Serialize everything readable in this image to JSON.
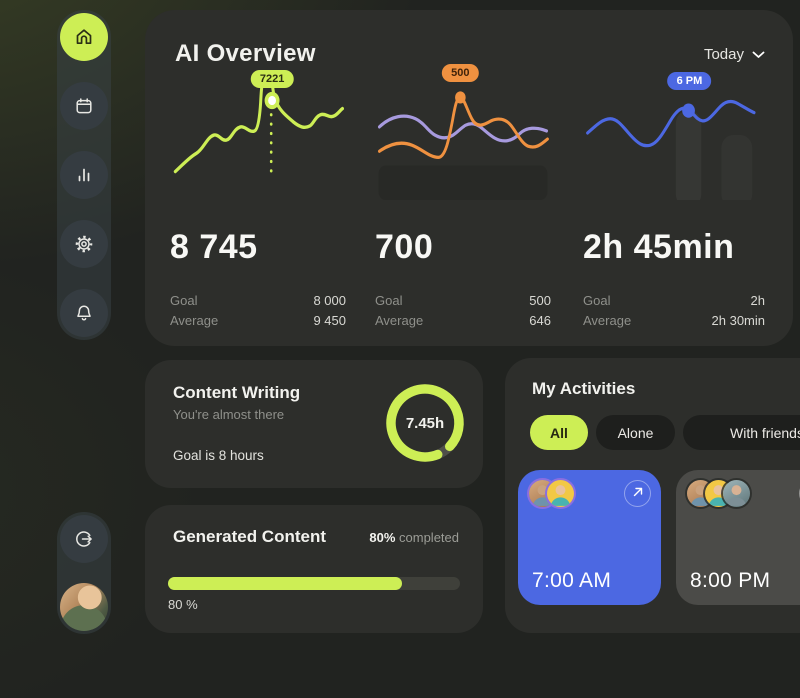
{
  "colors": {
    "accent_lime": "#cdee55",
    "accent_orange": "#ef9140",
    "accent_purple": "#a79ade",
    "accent_blue": "#4c68e2",
    "card_bg": "#2d2e2b",
    "page_bg": "#212320"
  },
  "sidebar": {
    "items": [
      {
        "name": "home",
        "active": true
      },
      {
        "name": "calendar",
        "active": false
      },
      {
        "name": "statistics",
        "active": false
      },
      {
        "name": "settings",
        "active": false
      },
      {
        "name": "notifications",
        "active": false
      }
    ],
    "logout": "logout",
    "avatar": "user profile photo"
  },
  "header": {
    "title": "AI Overview",
    "range_label": "Today"
  },
  "stats_labels": {
    "goal": "Goal",
    "average": "Average"
  },
  "stats": [
    {
      "value": "8 745",
      "goal": "8 000",
      "average": "9 450",
      "badge": "7221"
    },
    {
      "value": "700",
      "goal": "500",
      "average": "646",
      "badge": "500"
    },
    {
      "value": "2h 45min",
      "goal": "2h",
      "average": "2h 30min",
      "badge": "6 PM"
    }
  ],
  "content_writing": {
    "title": "Content Writing",
    "subtitle": "You're almost there",
    "goal_text": "Goal is 8 hours",
    "progress_label": "7.45h",
    "progress_pct": 93
  },
  "generated_content": {
    "title": "Generated Content",
    "completed_bold": "80%",
    "completed_rest": " completed",
    "bar_pct": 80,
    "bar_label": "80 %"
  },
  "activities": {
    "title": "My Activities",
    "tabs": [
      {
        "label": "All",
        "active": true
      },
      {
        "label": "Alone",
        "active": false
      },
      {
        "label": "With friends",
        "active": false
      }
    ],
    "cards": [
      {
        "time": "7:00 AM",
        "style": "blue",
        "participants": 2
      },
      {
        "time": "8:00 PM",
        "style": "gray",
        "participants": 3
      }
    ]
  },
  "chart_data": [
    {
      "type": "line",
      "title": "Sessions trend (left sparkline)",
      "series": [
        {
          "name": "sessions",
          "color": "#cdee55",
          "values": [
            45,
            52,
            58,
            62,
            60,
            66,
            63,
            65,
            97,
            97,
            75,
            62,
            57,
            55,
            60,
            56,
            61
          ]
        }
      ],
      "marker": {
        "label": "7221",
        "value": 7221
      },
      "summary": {
        "current": "8 745",
        "goal": "8 000",
        "average": "9 450"
      },
      "axes": "hidden",
      "grid": false,
      "legend": "none",
      "unit": "relative 0-100"
    },
    {
      "type": "line",
      "title": "Output trend (middle sparkline)",
      "series": [
        {
          "name": "current",
          "color": "#ef9140",
          "values": [
            38,
            42,
            44,
            40,
            34,
            32,
            33,
            76,
            77,
            60,
            58,
            61,
            57,
            50,
            42,
            40,
            45
          ]
        },
        {
          "name": "previous",
          "color": "#a79ade",
          "values": [
            55,
            59,
            61,
            56,
            48,
            44,
            46,
            50,
            53,
            57,
            54,
            49,
            45,
            44,
            49,
            53,
            51
          ]
        }
      ],
      "marker": {
        "label": "500",
        "value": 500
      },
      "summary": {
        "current": "700",
        "goal": "500",
        "average": "646"
      },
      "axes": "hidden",
      "grid": false,
      "legend": "none",
      "unit": "relative 0-100"
    },
    {
      "type": "line",
      "title": "Time spent trend (right sparkline)",
      "series": [
        {
          "name": "time",
          "color": "#4c68e2",
          "values": [
            50,
            58,
            61,
            58,
            48,
            42,
            40,
            44,
            56,
            68,
            70,
            66,
            60,
            60,
            70,
            76,
            74,
            68
          ]
        }
      ],
      "marker": {
        "label": "6 PM",
        "value": "6 PM"
      },
      "summary": {
        "current": "2h 45min",
        "goal": "2h",
        "average": "2h 30min"
      },
      "axes": "hidden",
      "grid": false,
      "legend": "none",
      "unit": "relative 0-100"
    }
  ]
}
